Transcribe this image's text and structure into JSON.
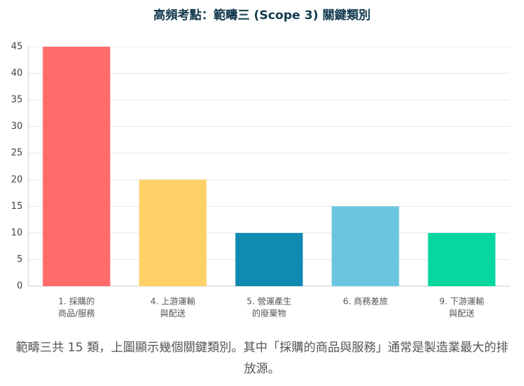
{
  "chart_data": {
    "type": "bar",
    "title": "高頻考點：範疇三 (Scope 3) 關鍵類別",
    "categories": [
      [
        "1. 採購的",
        "商品/服務"
      ],
      [
        "4. 上游運輸",
        "與配送"
      ],
      [
        "5. 營運產生",
        "的廢棄物"
      ],
      [
        "6. 商務差旅"
      ],
      [
        "9. 下游運輸",
        "與配送"
      ]
    ],
    "values": [
      45,
      20,
      10,
      15,
      10
    ],
    "colors": [
      "#ff6b6b",
      "#ffd166",
      "#118ab2",
      "#6ac6de",
      "#06d6a0"
    ],
    "ylim": [
      0,
      45
    ],
    "yticks": [
      0,
      5,
      10,
      15,
      20,
      25,
      30,
      35,
      40,
      45
    ],
    "grid": true
  },
  "caption": "範疇三共 15 類，上圖顯示幾個關鍵類別。其中「採購的商品與服務」通常是製造業最大的排放源。"
}
